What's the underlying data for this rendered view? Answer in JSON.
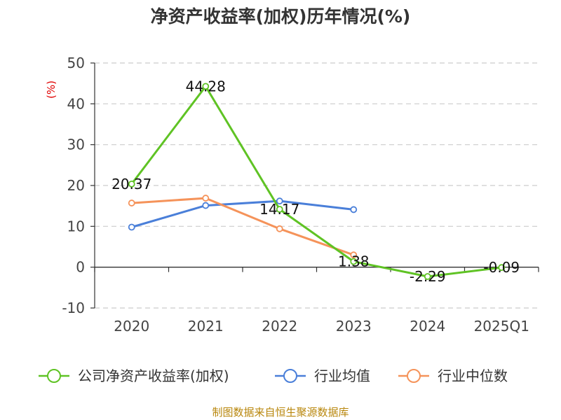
{
  "chart_data": {
    "type": "line",
    "title": "净资产收益率(加权)历年情况(%)",
    "ylabel": "(%)",
    "categories": [
      "2020",
      "2021",
      "2022",
      "2023",
      "2024",
      "2025Q1"
    ],
    "ylim": [
      -10,
      50
    ],
    "yticks": [
      -10,
      0,
      10,
      20,
      30,
      40,
      50
    ],
    "grid": true,
    "legend_position": "bottom",
    "series": [
      {
        "name": "公司净资产收益率(加权)",
        "color": "#5fc324",
        "values": [
          20.37,
          44.28,
          14.17,
          1.38,
          -2.29,
          -0.09
        ],
        "labels": [
          "20.37",
          "44.28",
          "14.17",
          "1.38",
          "-2.29",
          "-0.09"
        ]
      },
      {
        "name": "行业均值",
        "color": "#4a7fd9",
        "values": [
          9.8,
          15.1,
          16.2,
          14.1,
          null,
          null
        ]
      },
      {
        "name": "行业中位数",
        "color": "#f5935a",
        "values": [
          15.7,
          16.9,
          9.4,
          3.0,
          null,
          null
        ]
      }
    ],
    "source": "制图数据来自恒生聚源数据库"
  }
}
